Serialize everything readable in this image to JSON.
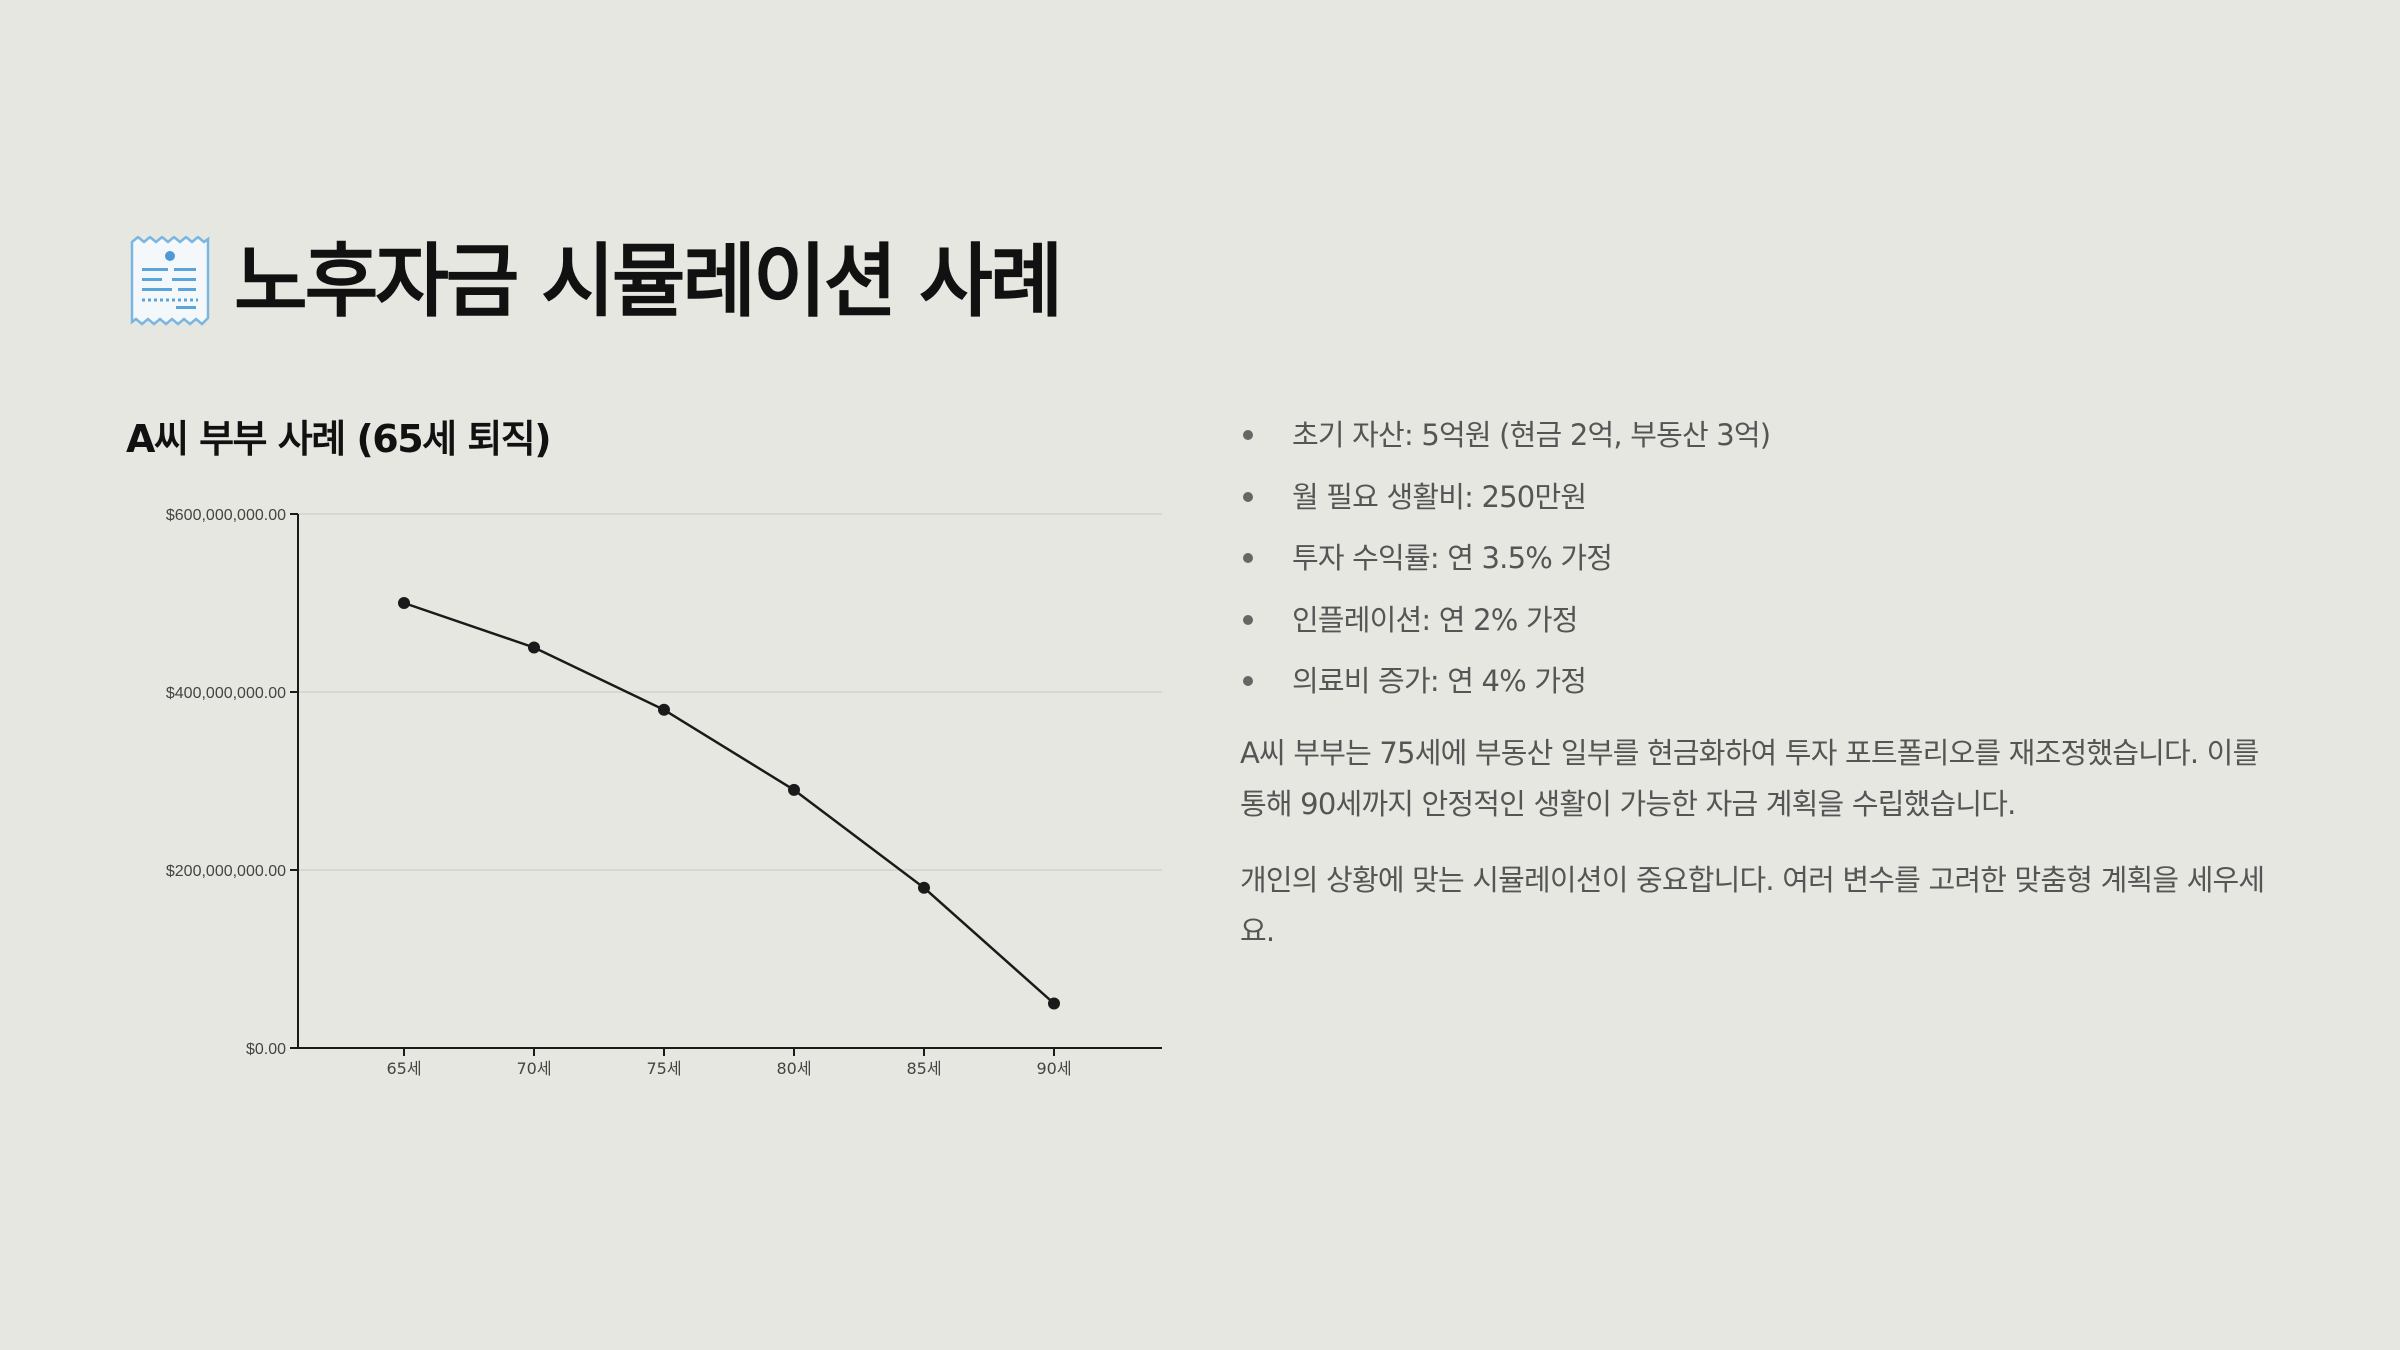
{
  "header": {
    "icon": "receipt-icon",
    "title": "노후자금 시뮬레이션 사례"
  },
  "chart_section": {
    "title": "A씨 부부 사례 (65세 퇴직)"
  },
  "chart_data": {
    "type": "line",
    "categories": [
      "65세",
      "70세",
      "75세",
      "80세",
      "85세",
      "90세"
    ],
    "series": [
      {
        "values": [
          500000000,
          450000000,
          380000000,
          290000000,
          180000000,
          50000000
        ]
      }
    ],
    "ylim": [
      0,
      600000000
    ],
    "yticks": [
      0,
      200000000,
      400000000,
      600000000
    ],
    "ytick_labels": [
      "$0.00",
      "$200,000,000.00",
      "$400,000,000.00",
      "$600,000,000.00"
    ],
    "title": "",
    "xlabel": "",
    "ylabel": "",
    "grid": "horizontal",
    "colors": {
      "line": "#1a1a1a",
      "grid": "#d2d2cc",
      "axis": "#1a1a1a"
    }
  },
  "details": {
    "bullets": [
      "초기 자산: 5억원 (현금 2억, 부동산 3억)",
      "월 필요 생활비: 250만원",
      "투자 수익률: 연 3.5% 가정",
      "인플레이션: 연 2% 가정",
      "의료비 증가: 연 4% 가정"
    ],
    "paragraph1": "A씨 부부는 75세에 부동산 일부를 현금화하여 투자 포트폴리오를 재조정했습니다. 이를 통해 90세까지 안정적인 생활이 가능한 자금 계획을 수립했습니다.",
    "paragraph2": "개인의 상황에 맞는 시뮬레이션이 중요합니다. 여러 변수를 고려한 맞춤형 계획을 세우세요."
  }
}
